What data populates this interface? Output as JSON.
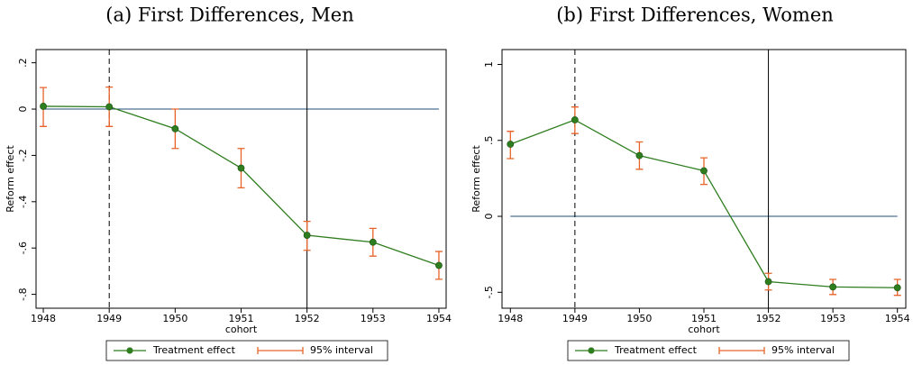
{
  "chart_data": [
    {
      "type": "line",
      "title": "(a) First Differences, Men",
      "xlabel": "cohort",
      "ylabel": "Reform effect",
      "x": [
        1948,
        1949,
        1950,
        1951,
        1952,
        1953,
        1954
      ],
      "series": [
        {
          "name": "Treatment effect",
          "color": "#2e7d1e",
          "values": [
            0.012,
            0.01,
            -0.085,
            -0.255,
            -0.545,
            -0.575,
            -0.675
          ]
        },
        {
          "name": "95% interval",
          "color": "#e8632a",
          "low": [
            -0.075,
            -0.075,
            -0.17,
            -0.34,
            -0.61,
            -0.635,
            -0.735
          ],
          "high": [
            0.093,
            0.095,
            0,
            -0.17,
            -0.485,
            -0.515,
            -0.615
          ]
        }
      ],
      "xlim": [
        1947.89,
        1954.11
      ],
      "ylim": [
        -0.86,
        0.257
      ],
      "xticks": [
        1948,
        1949,
        1950,
        1951,
        1952,
        1953,
        1954
      ],
      "yticks": [
        {
          "value": 0.2,
          "label": ".2"
        },
        0,
        {
          "value": -0.2,
          "label": "-.2"
        },
        {
          "value": -0.4,
          "label": "-.4"
        },
        {
          "value": -0.6,
          "label": "-.6"
        },
        {
          "value": -0.8,
          "label": "-.8"
        }
      ],
      "hlines": [
        {
          "value": 0,
          "color": "#1f4e79"
        }
      ],
      "vlines": [
        {
          "value": 1949,
          "style": "dashed"
        },
        {
          "value": 1952,
          "style": "solid"
        }
      ],
      "legend": "bottom"
    },
    {
      "type": "line",
      "title": "(b) First Differences, Women",
      "xlabel": "cohort",
      "ylabel": "Reform effect",
      "x": [
        1948,
        1949,
        1950,
        1951,
        1952,
        1953,
        1954
      ],
      "series": [
        {
          "name": "Treatment effect",
          "color": "#2e7d1e",
          "values": [
            0.475,
            0.635,
            0.4,
            0.3,
            -0.43,
            -0.465,
            -0.47
          ]
        },
        {
          "name": "95% interval",
          "color": "#e8632a",
          "low": [
            0.38,
            0.545,
            0.31,
            0.21,
            -0.485,
            -0.515,
            -0.52
          ],
          "high": [
            0.56,
            0.72,
            0.49,
            0.385,
            -0.375,
            -0.415,
            -0.415
          ]
        }
      ],
      "xlim": [
        1947.87,
        1954.13
      ],
      "ylim": [
        -0.605,
        1.098
      ],
      "xticks": [
        1948,
        1949,
        1950,
        1951,
        1952,
        1953,
        1954
      ],
      "yticks": [
        1,
        {
          "value": 0.5,
          "label": ".5"
        },
        0,
        {
          "value": -0.5,
          "label": "-.5"
        }
      ],
      "hlines": [
        {
          "value": 0,
          "color": "#1f4e79"
        }
      ],
      "vlines": [
        {
          "value": 1949,
          "style": "dashed"
        },
        {
          "value": 1952,
          "style": "solid"
        }
      ],
      "legend": "bottom"
    }
  ]
}
